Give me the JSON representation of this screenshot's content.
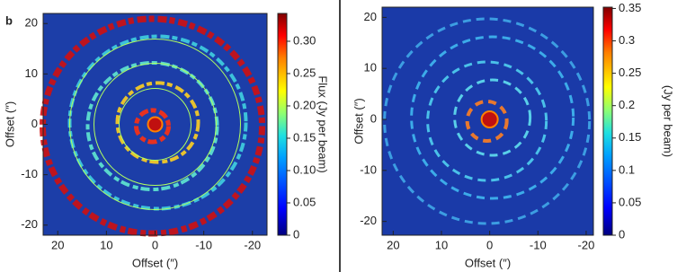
{
  "chart_data": [
    {
      "type": "heatmap",
      "panel_label": "b",
      "x_label": "Offset (″)",
      "y_label": "Offset (″)",
      "colorbar_label": "Flux (Jy per beam)",
      "xlim": [
        23,
        -23
      ],
      "ylim": [
        -22,
        22
      ],
      "xticks": [
        20,
        10,
        0,
        -10,
        -20
      ],
      "yticks": [
        20,
        10,
        0,
        -10,
        -20
      ],
      "clim": [
        0,
        0.343
      ],
      "cticks": [
        0,
        0.05,
        {
          "value": 0.1,
          "label": "0.10"
        },
        0.15,
        {
          "value": 0.2,
          "label": "0.20"
        },
        0.25,
        {
          "value": 0.3,
          "label": "0.30"
        }
      ]
    },
    {
      "type": "heatmap",
      "x_label": "Offset (″)",
      "y_label": "Offset (″)",
      "colorbar_label": "(Jy per beam)",
      "xlim": [
        22.3,
        -21.5
      ],
      "ylim": [
        -22.7,
        22
      ],
      "xticks": [
        20,
        10,
        0,
        -10,
        -20
      ],
      "yticks": [
        20,
        10,
        0,
        -10,
        -20
      ],
      "clim": [
        0,
        0.352
      ],
      "cticks": [
        0,
        0.05,
        0.1,
        0.15,
        0.2,
        0.25,
        0.3,
        0.35
      ]
    }
  ]
}
